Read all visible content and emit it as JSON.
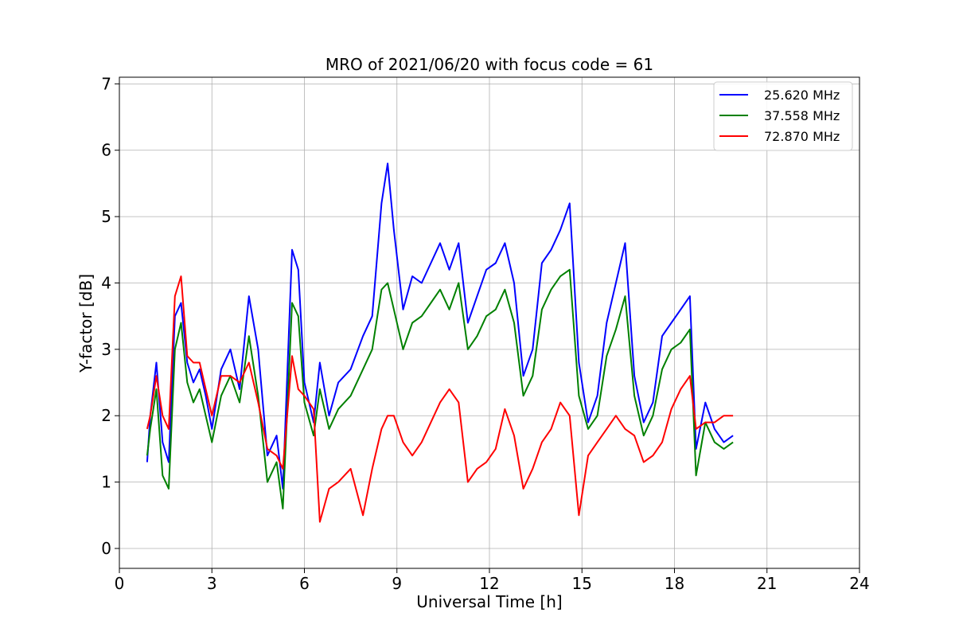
{
  "chart_data": {
    "type": "line",
    "title": "MRO of 2021/06/20 with focus code = 61",
    "xlabel": "Universal Time [h]",
    "ylabel": "Y-factor [dB]",
    "xlim": [
      0,
      24
    ],
    "ylim": [
      -0.3,
      7.1
    ],
    "xticks": [
      0,
      3,
      6,
      9,
      12,
      15,
      18,
      21,
      24
    ],
    "yticks": [
      0,
      1,
      2,
      3,
      4,
      5,
      6,
      7
    ],
    "grid": true,
    "legend_position": "top-right",
    "series": [
      {
        "name": "25.620 MHz",
        "color": "#0000ff",
        "x": [
          0.9,
          1.0,
          1.2,
          1.4,
          1.6,
          1.8,
          2.0,
          2.2,
          2.4,
          2.6,
          2.8,
          3.0,
          3.3,
          3.6,
          3.9,
          4.2,
          4.5,
          4.8,
          5.1,
          5.3,
          5.6,
          5.8,
          6.0,
          6.3,
          6.5,
          6.8,
          7.1,
          7.5,
          7.9,
          8.2,
          8.5,
          8.7,
          8.9,
          9.2,
          9.5,
          9.8,
          10.1,
          10.4,
          10.7,
          11.0,
          11.3,
          11.6,
          11.9,
          12.2,
          12.5,
          12.8,
          13.1,
          13.4,
          13.7,
          14.0,
          14.3,
          14.6,
          14.9,
          15.2,
          15.5,
          15.8,
          16.1,
          16.4,
          16.7,
          17.0,
          17.3,
          17.6,
          17.9,
          18.2,
          18.5,
          18.7,
          19.0,
          19.3,
          19.6,
          19.9
        ],
        "values": [
          1.3,
          2.0,
          2.8,
          1.6,
          1.3,
          3.5,
          3.7,
          2.8,
          2.5,
          2.7,
          2.3,
          1.8,
          2.7,
          3.0,
          2.4,
          3.8,
          3.0,
          1.4,
          1.7,
          0.9,
          4.5,
          4.2,
          2.5,
          1.9,
          2.8,
          2.0,
          2.5,
          2.7,
          3.2,
          3.5,
          5.2,
          5.8,
          4.8,
          3.6,
          4.1,
          4.0,
          4.3,
          4.6,
          4.2,
          4.6,
          3.4,
          3.8,
          4.2,
          4.3,
          4.6,
          4.0,
          2.6,
          3.0,
          4.3,
          4.5,
          4.8,
          5.2,
          2.8,
          1.9,
          2.3,
          3.4,
          4.0,
          4.6,
          2.6,
          1.9,
          2.2,
          3.2,
          3.4,
          3.6,
          3.8,
          1.5,
          2.2,
          1.8,
          1.6,
          1.7
        ]
      },
      {
        "name": "37.558 MHz",
        "color": "#008000",
        "x": [
          0.9,
          1.0,
          1.2,
          1.4,
          1.6,
          1.8,
          2.0,
          2.2,
          2.4,
          2.6,
          2.8,
          3.0,
          3.3,
          3.6,
          3.9,
          4.2,
          4.5,
          4.8,
          5.1,
          5.3,
          5.6,
          5.8,
          6.0,
          6.3,
          6.5,
          6.8,
          7.1,
          7.5,
          7.9,
          8.2,
          8.5,
          8.7,
          8.9,
          9.2,
          9.5,
          9.8,
          10.1,
          10.4,
          10.7,
          11.0,
          11.3,
          11.6,
          11.9,
          12.2,
          12.5,
          12.8,
          13.1,
          13.4,
          13.7,
          14.0,
          14.3,
          14.6,
          14.9,
          15.2,
          15.5,
          15.8,
          16.1,
          16.4,
          16.7,
          17.0,
          17.3,
          17.6,
          17.9,
          18.2,
          18.5,
          18.7,
          19.0,
          19.3,
          19.6,
          19.9
        ],
        "values": [
          1.4,
          1.8,
          2.4,
          1.1,
          0.9,
          3.0,
          3.4,
          2.5,
          2.2,
          2.4,
          2.0,
          1.6,
          2.3,
          2.6,
          2.2,
          3.2,
          2.3,
          1.0,
          1.3,
          0.6,
          3.7,
          3.5,
          2.2,
          1.7,
          2.4,
          1.8,
          2.1,
          2.3,
          2.7,
          3.0,
          3.9,
          4.0,
          3.6,
          3.0,
          3.4,
          3.5,
          3.7,
          3.9,
          3.6,
          4.0,
          3.0,
          3.2,
          3.5,
          3.6,
          3.9,
          3.4,
          2.3,
          2.6,
          3.6,
          3.9,
          4.1,
          4.2,
          2.3,
          1.8,
          2.0,
          2.9,
          3.3,
          3.8,
          2.3,
          1.7,
          2.0,
          2.7,
          3.0,
          3.1,
          3.3,
          1.1,
          1.9,
          1.6,
          1.5,
          1.6
        ]
      },
      {
        "name": "72.870 MHz",
        "color": "#ff0000",
        "x": [
          0.9,
          1.0,
          1.2,
          1.4,
          1.6,
          1.8,
          2.0,
          2.2,
          2.4,
          2.6,
          2.8,
          3.0,
          3.3,
          3.6,
          3.9,
          4.2,
          4.5,
          4.8,
          5.1,
          5.3,
          5.6,
          5.8,
          6.0,
          6.3,
          6.5,
          6.8,
          7.1,
          7.5,
          7.9,
          8.2,
          8.5,
          8.7,
          8.9,
          9.2,
          9.5,
          9.8,
          10.1,
          10.4,
          10.7,
          11.0,
          11.3,
          11.6,
          11.9,
          12.2,
          12.5,
          12.8,
          13.1,
          13.4,
          13.7,
          14.0,
          14.3,
          14.6,
          14.9,
          15.2,
          15.5,
          15.8,
          16.1,
          16.4,
          16.7,
          17.0,
          17.3,
          17.6,
          17.9,
          18.2,
          18.5,
          18.7,
          19.0,
          19.3,
          19.6,
          19.9
        ],
        "values": [
          1.8,
          2.0,
          2.6,
          2.0,
          1.8,
          3.8,
          4.1,
          2.9,
          2.8,
          2.8,
          2.4,
          2.0,
          2.6,
          2.6,
          2.5,
          2.8,
          2.2,
          1.5,
          1.4,
          1.2,
          2.9,
          2.4,
          2.3,
          2.1,
          0.4,
          0.9,
          1.0,
          1.2,
          0.5,
          1.2,
          1.8,
          2.0,
          2.0,
          1.6,
          1.4,
          1.6,
          1.9,
          2.2,
          2.4,
          2.2,
          1.0,
          1.2,
          1.3,
          1.5,
          2.1,
          1.7,
          0.9,
          1.2,
          1.6,
          1.8,
          2.2,
          2.0,
          0.5,
          1.4,
          1.6,
          1.8,
          2.0,
          1.8,
          1.7,
          1.3,
          1.4,
          1.6,
          2.1,
          2.4,
          2.6,
          1.8,
          1.9,
          1.9,
          2.0,
          2.0
        ]
      }
    ]
  }
}
